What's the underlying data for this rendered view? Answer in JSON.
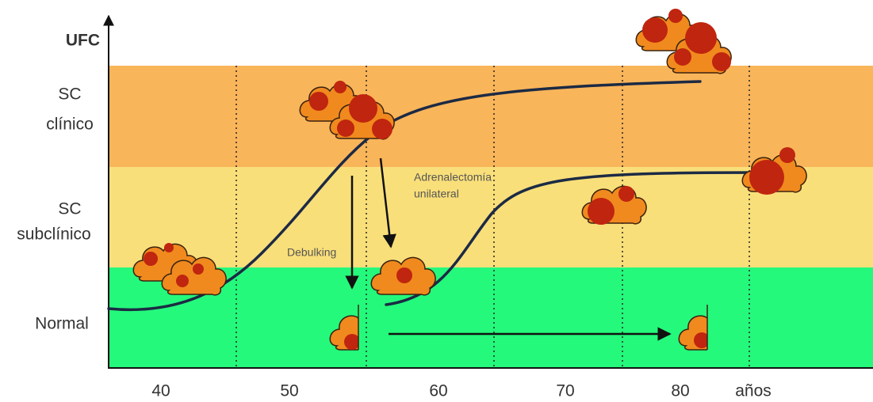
{
  "y_axis": {
    "label": "UFC"
  },
  "zones": [
    {
      "lines": [
        "SC",
        "clínico"
      ]
    },
    {
      "lines": [
        "SC",
        "subclínico"
      ]
    },
    {
      "lines": [
        "Normal"
      ]
    }
  ],
  "x_axis": {
    "labels": [
      "40",
      "50",
      "60",
      "70",
      "80"
    ],
    "unit": "años"
  },
  "annotations": {
    "debulking": "Debulking",
    "adrenalectomy": [
      "Adrenalectomía",
      "unilateral"
    ]
  }
}
